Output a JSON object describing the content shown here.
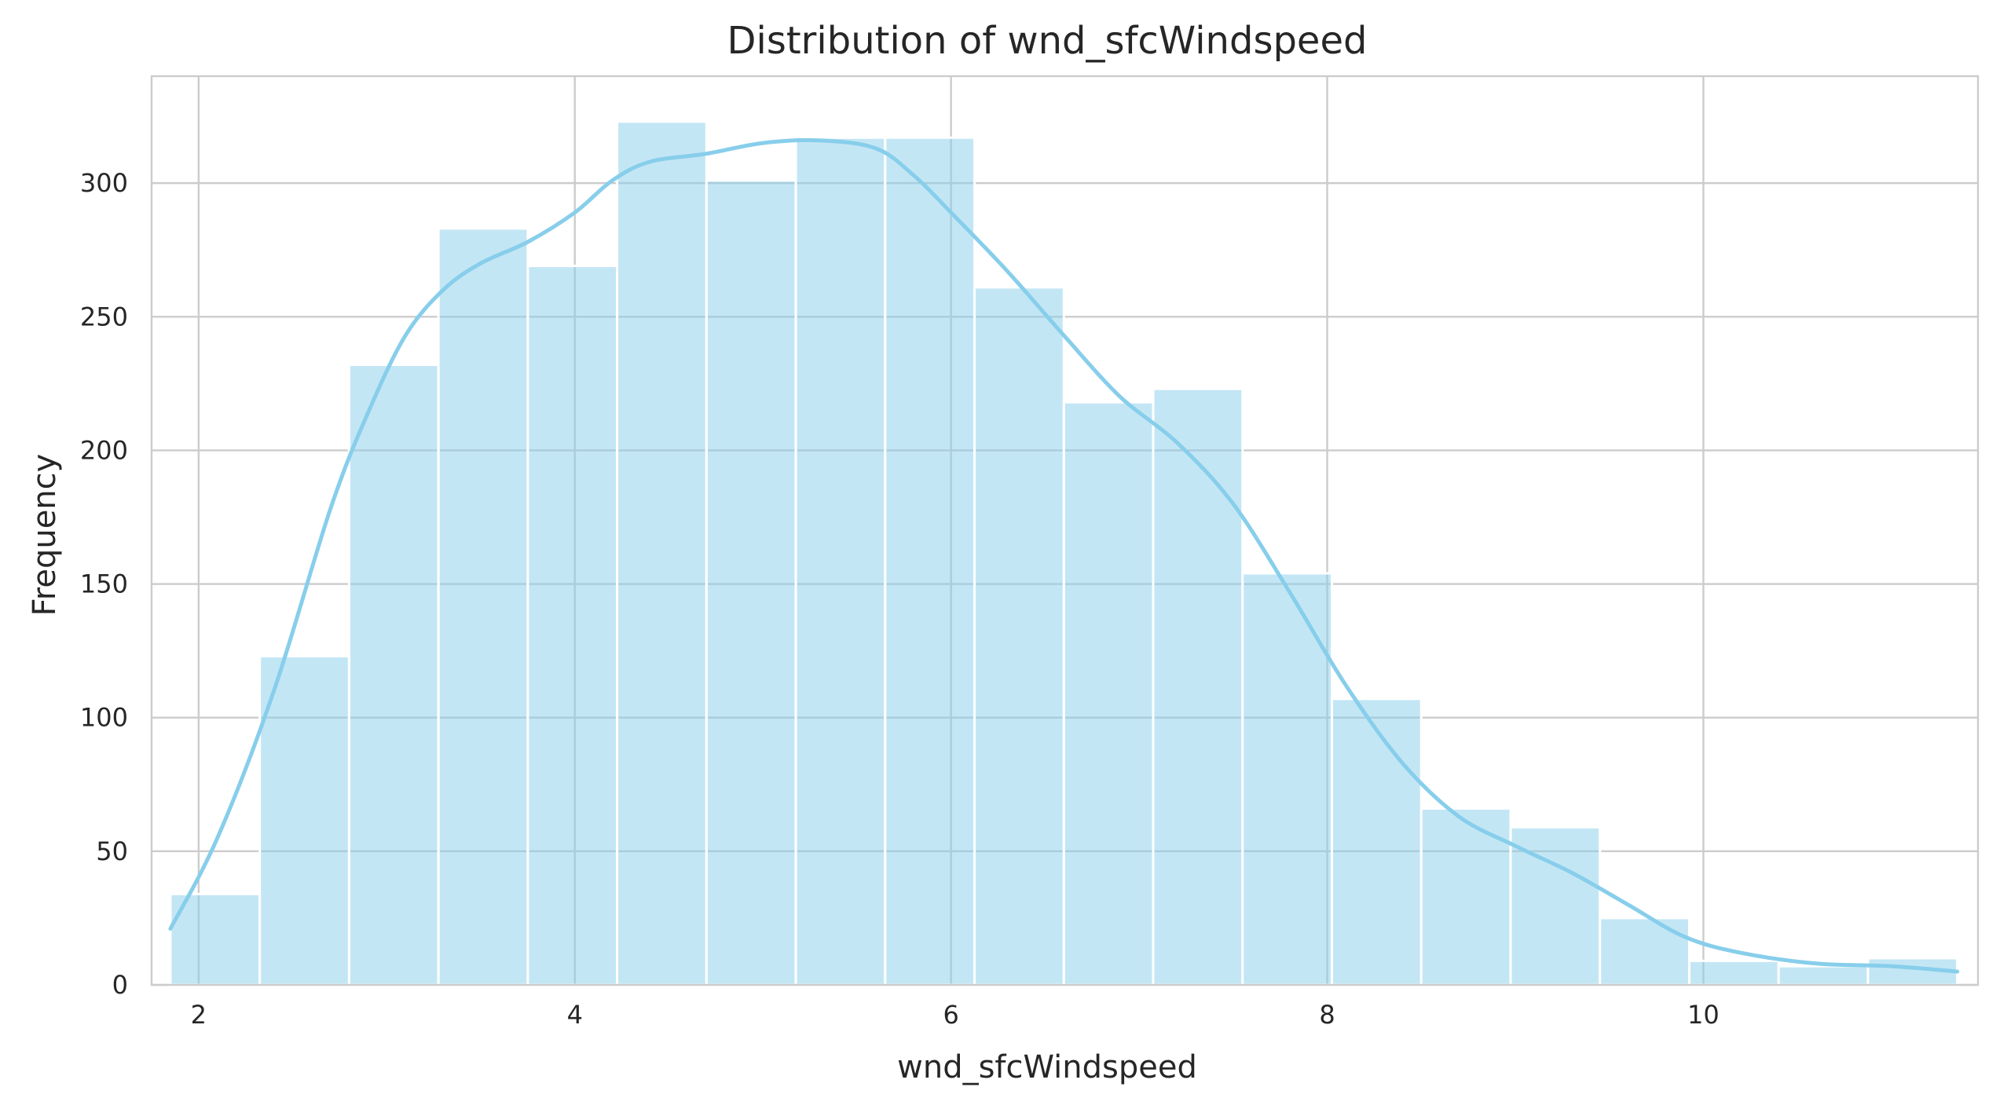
{
  "chart_data": {
    "type": "bar",
    "subtype": "histogram-with-kde",
    "title": "Distribution of wnd_sfcWindspeed",
    "xlabel": "wnd_sfcWindspeed",
    "ylabel": "Frequency",
    "xlim": [
      1.75,
      11.46
    ],
    "ylim": [
      0,
      340
    ],
    "xticks": [
      2,
      4,
      6,
      8,
      10
    ],
    "yticks": [
      0,
      50,
      100,
      150,
      200,
      250,
      300
    ],
    "grid": true,
    "bins": {
      "edges": [
        1.85,
        2.325,
        2.8,
        3.275,
        3.75,
        4.225,
        4.7,
        5.175,
        5.65,
        6.125,
        6.6,
        7.075,
        7.55,
        8.025,
        8.5,
        8.975,
        9.45,
        9.925,
        10.4,
        10.875,
        11.35
      ],
      "counts": [
        34,
        123,
        232,
        283,
        269,
        323,
        301,
        317,
        317,
        261,
        218,
        223,
        154,
        107,
        66,
        59,
        25,
        9,
        7,
        10
      ]
    },
    "kde": {
      "x": [
        1.85,
        2.1,
        2.4,
        2.7,
        2.9,
        3.1,
        3.3,
        3.5,
        3.75,
        4.0,
        4.2,
        4.4,
        4.7,
        5.0,
        5.3,
        5.6,
        5.8,
        6.0,
        6.3,
        6.6,
        6.9,
        7.2,
        7.5,
        7.8,
        8.1,
        8.4,
        8.7,
        9.0,
        9.3,
        9.6,
        9.9,
        10.2,
        10.6,
        11.0,
        11.35
      ],
      "y": [
        21,
        55,
        110,
        178,
        214,
        243,
        260,
        270,
        278,
        289,
        301,
        308,
        311,
        315,
        316,
        313,
        303,
        289,
        267,
        243,
        220,
        203,
        180,
        147,
        112,
        83,
        63,
        52,
        42,
        30,
        18,
        12,
        8,
        7,
        5
      ]
    },
    "colors": {
      "bar": "#87ceeb",
      "kde": "#87ceeb",
      "grid": "#cccccc",
      "text": "#262626"
    }
  }
}
